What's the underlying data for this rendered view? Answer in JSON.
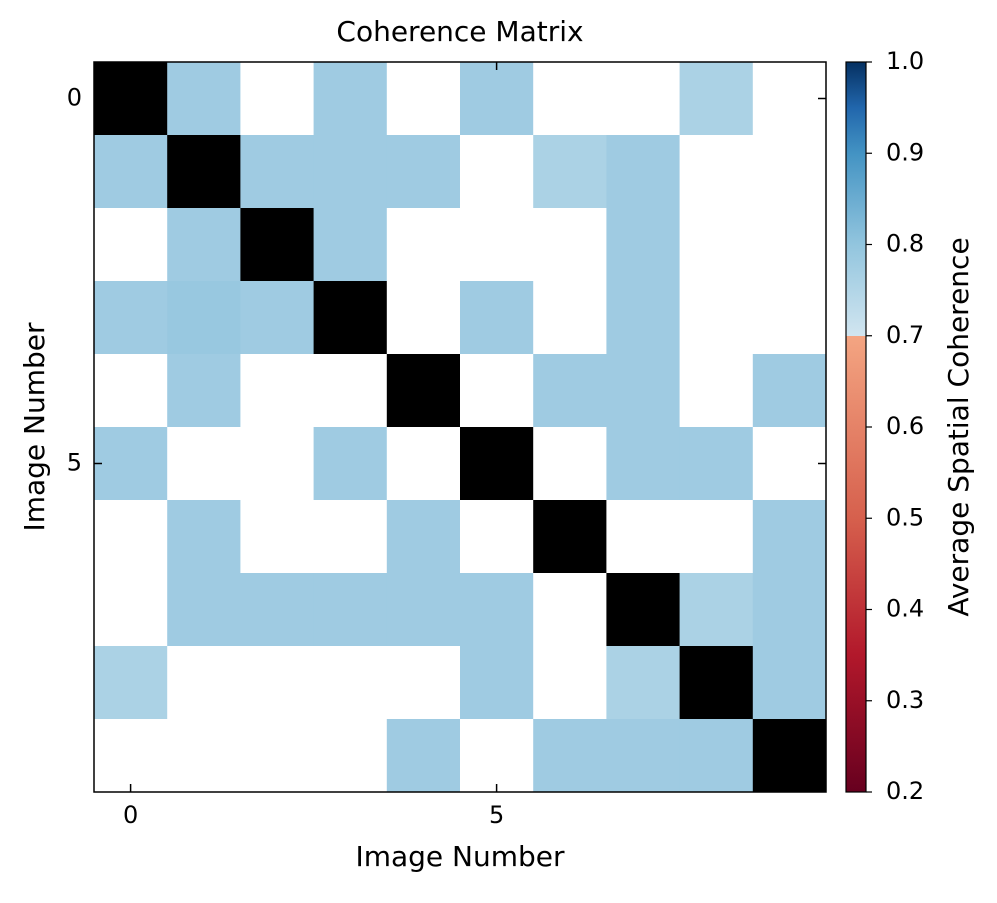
{
  "chart_data": {
    "type": "heatmap",
    "title": "Coherence Matrix",
    "x_label": "Image Number",
    "y_label": "Image Number",
    "colorbar_label": "Average Spatial Coherence",
    "z": [
      [
        null,
        0.78,
        null,
        0.78,
        null,
        0.78,
        null,
        null,
        0.76,
        null
      ],
      [
        0.78,
        null,
        0.78,
        0.78,
        0.78,
        null,
        0.76,
        0.78,
        null,
        null
      ],
      [
        null,
        0.78,
        null,
        0.78,
        null,
        null,
        null,
        0.78,
        null,
        null
      ],
      [
        0.78,
        0.79,
        0.78,
        null,
        null,
        0.78,
        null,
        0.78,
        null,
        null
      ],
      [
        null,
        0.78,
        null,
        null,
        null,
        null,
        0.78,
        0.78,
        null,
        0.78
      ],
      [
        0.78,
        null,
        null,
        0.78,
        null,
        null,
        null,
        0.78,
        0.78,
        null
      ],
      [
        null,
        0.78,
        null,
        null,
        0.78,
        null,
        null,
        null,
        null,
        0.78
      ],
      [
        null,
        0.78,
        0.78,
        0.78,
        0.78,
        0.78,
        null,
        null,
        0.76,
        0.78
      ],
      [
        0.76,
        null,
        null,
        null,
        null,
        0.78,
        null,
        0.76,
        null,
        0.78
      ],
      [
        null,
        null,
        null,
        null,
        0.78,
        null,
        0.78,
        0.78,
        0.78,
        null
      ]
    ],
    "xlim": [
      -0.5,
      9.5
    ],
    "ylim": [
      9.5,
      -0.5
    ],
    "xticks": [
      0,
      5
    ],
    "yticks": [
      0,
      5
    ],
    "zlim": [
      0.2,
      1
    ],
    "zticks": [
      0.2,
      0.3,
      0.4,
      0.5,
      0.6,
      0.7,
      0.8,
      0.9,
      {
        "value": 1,
        "label": "1.0"
      }
    ],
    "colorscale": [
      [
        0.2,
        "#67001f"
      ],
      [
        0.35,
        "#b2182b"
      ],
      [
        0.5,
        "#d6604d"
      ],
      [
        0.7,
        "#f4a582"
      ],
      [
        0.7,
        "#d1e5f0"
      ],
      [
        0.8,
        "#92c5de"
      ],
      [
        0.9,
        "#4393c3"
      ],
      [
        0.95,
        "#2166ac"
      ],
      [
        1,
        "#053061"
      ]
    ],
    "missing_color": "#ffffff",
    "diagonal_color": "#000000"
  }
}
